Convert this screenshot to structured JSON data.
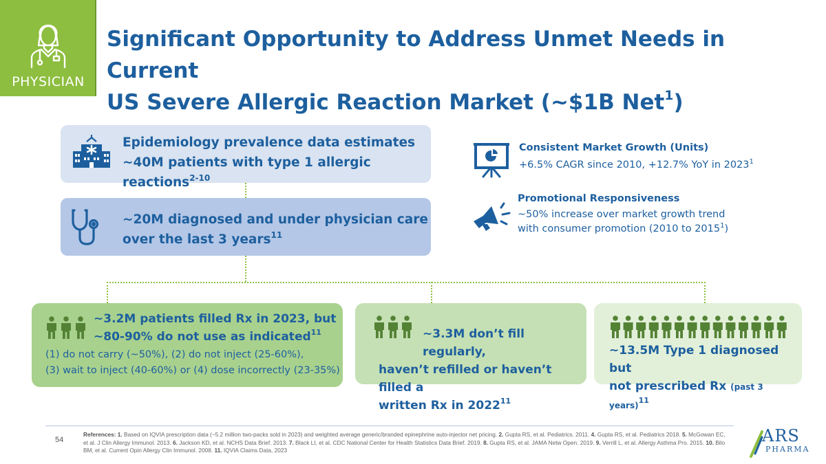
{
  "badge": {
    "label": "PHYSICIAN",
    "color": "#8dbe3f"
  },
  "header": {
    "title_line1": "Significant Opportunity to Address Unmet Needs in Current",
    "title_line2_main": "US Severe Allergic Reaction Market (~$1B Net",
    "title_line2_sup": "1",
    "title_line2_close": ")"
  },
  "funnel": {
    "epidemiology": {
      "line1": "Epidemiology prevalence data estimates",
      "line2": "~40M patients with type 1 allergic reactions",
      "sup": "2-10",
      "icon": "hospital-icon"
    },
    "diagnosed": {
      "line1": "~20M diagnosed and under physician care",
      "line2": "over the last 3 years",
      "sup": "11",
      "icon": "stethoscope-icon"
    }
  },
  "facts": {
    "growth": {
      "title": "Consistent Market Growth (Units)",
      "body": "+6.5% CAGR since 2010, +12.7% YoY in 2023",
      "sup": "1",
      "icon": "presentation-chart-icon"
    },
    "promo": {
      "title": "Promotional Responsiveness",
      "body_line1": "~50% increase over market growth trend",
      "body_line2": "with consumer promotion (2010 to 2015",
      "sup": "1",
      "close": ")",
      "icon": "megaphone-icon"
    }
  },
  "cards": {
    "filled": {
      "head_line1": "~3.2M patients filled Rx in 2023, but",
      "head_line2": "~80-90% do not use as indicated",
      "sup": "11",
      "sub_line1": "(1) do not carry (~50%), (2) do not inject (25-60%),",
      "sub_line2": "(3) wait to inject (40-60%) or (4) dose incorrectly (23-35%)"
    },
    "unfilled": {
      "head_line1": "~3.3M don’t fill regularly,",
      "head_line2": "haven’t refilled or haven’t filled a",
      "head_line3": "written Rx in 2022",
      "sup": "11"
    },
    "not_prescribed": {
      "head_line1": "~13.5M Type 1 diagnosed but",
      "head_line2": "not prescribed Rx",
      "small": "(past 3 years)",
      "sup": "11"
    }
  },
  "footer": {
    "page_number": "54",
    "references": [
      {
        "num": "References: 1.",
        "text": " Based on IQVIA prescription data (~5.2 million two-packs sold in 2023) and weighted average generic/branded epinephrine auto-injector net pricing. "
      },
      {
        "num": "2.",
        "text": " Gupta RS, et al. Pediatrics. 2011. "
      },
      {
        "num": "4.",
        "text": " Gupta RS, et al. Pediatrics 2018. "
      },
      {
        "num": "5.",
        "text": " McGowan EC, et al. J Clin Allergy Immunol. 2013. "
      },
      {
        "num": "6.",
        "text": " Jackson KD, et al. NCHS Data Brief. 2013. "
      },
      {
        "num": "7.",
        "text": "  Black LI, et al. CDC National Center for Health Statistics Data Brief. 2019. "
      },
      {
        "num": "8.",
        "text": " Gupta RS, et al. JAMA Netw Open. 2019. "
      },
      {
        "num": "9.",
        "text": " Verrill L, et al. Allergy Asthma Pro. 2015. "
      },
      {
        "num": "10.",
        "text": " Bilo BM, et al. Current Opin Allergy Clin Immunol. 2008. "
      },
      {
        "num": "11.",
        "text": " IQVIA Claims Data, 2023"
      }
    ],
    "logo_text": "ARS",
    "logo_subtext": "PHARMA"
  },
  "colors": {
    "title_blue": "#1d5f9e",
    "green": "#8dbe3f",
    "card_green_dark": "#a9d18e",
    "card_green_mid": "#c5e0b4",
    "card_green_light": "#e2f0d9",
    "box_blue_light": "#d9e3f1",
    "box_blue_mid": "#b4c7e7",
    "people_green": "#548235"
  }
}
